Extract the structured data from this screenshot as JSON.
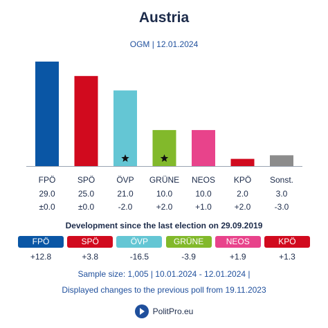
{
  "header": {
    "title": "Austria",
    "subtitle": "OGM | 12.01.2024"
  },
  "chart_data": {
    "type": "bar",
    "categories": [
      "FPÖ",
      "SPÖ",
      "ÖVP",
      "GRÜNE",
      "NEOS",
      "KPÖ",
      "Sonst."
    ],
    "values": [
      29.0,
      25.0,
      21.0,
      10.0,
      10.0,
      2.0,
      3.0
    ],
    "value_labels": [
      "29.0",
      "25.0",
      "21.0",
      "10.0",
      "10.0",
      "2.0",
      "3.0"
    ],
    "change_labels": [
      "±0.0",
      "±0.0",
      "-2.0",
      "+2.0",
      "+1.0",
      "+2.0",
      "-3.0"
    ],
    "colors": [
      "#0a56a5",
      "#d10a1e",
      "#64c6d4",
      "#82b92b",
      "#e8438b",
      "#d10a1e",
      "#8c8c8c"
    ],
    "starred": [
      false,
      false,
      true,
      true,
      false,
      false,
      false
    ],
    "ylim": [
      0,
      29
    ]
  },
  "development": {
    "title": "Development since the last election on 29.09.2019",
    "items": [
      {
        "label": "FPÖ",
        "value": "+12.8",
        "color": "#0a56a5"
      },
      {
        "label": "SPÖ",
        "value": "+3.8",
        "color": "#d10a1e"
      },
      {
        "label": "ÖVP",
        "value": "-16.5",
        "color": "#64c6d4"
      },
      {
        "label": "GRÜNE",
        "value": "-3.9",
        "color": "#82b92b"
      },
      {
        "label": "NEOS",
        "value": "+1.9",
        "color": "#e8438b"
      },
      {
        "label": "KPÖ",
        "value": "+1.3",
        "color": "#d10a1e"
      }
    ]
  },
  "footer": {
    "sample": "Sample size: 1,005 | 10.01.2024 - 12.01.2024 |",
    "changes": "Displayed changes to the previous poll from 19.11.2023",
    "brand": "PolitPro.eu",
    "brand_color": "#1f4f9c"
  }
}
